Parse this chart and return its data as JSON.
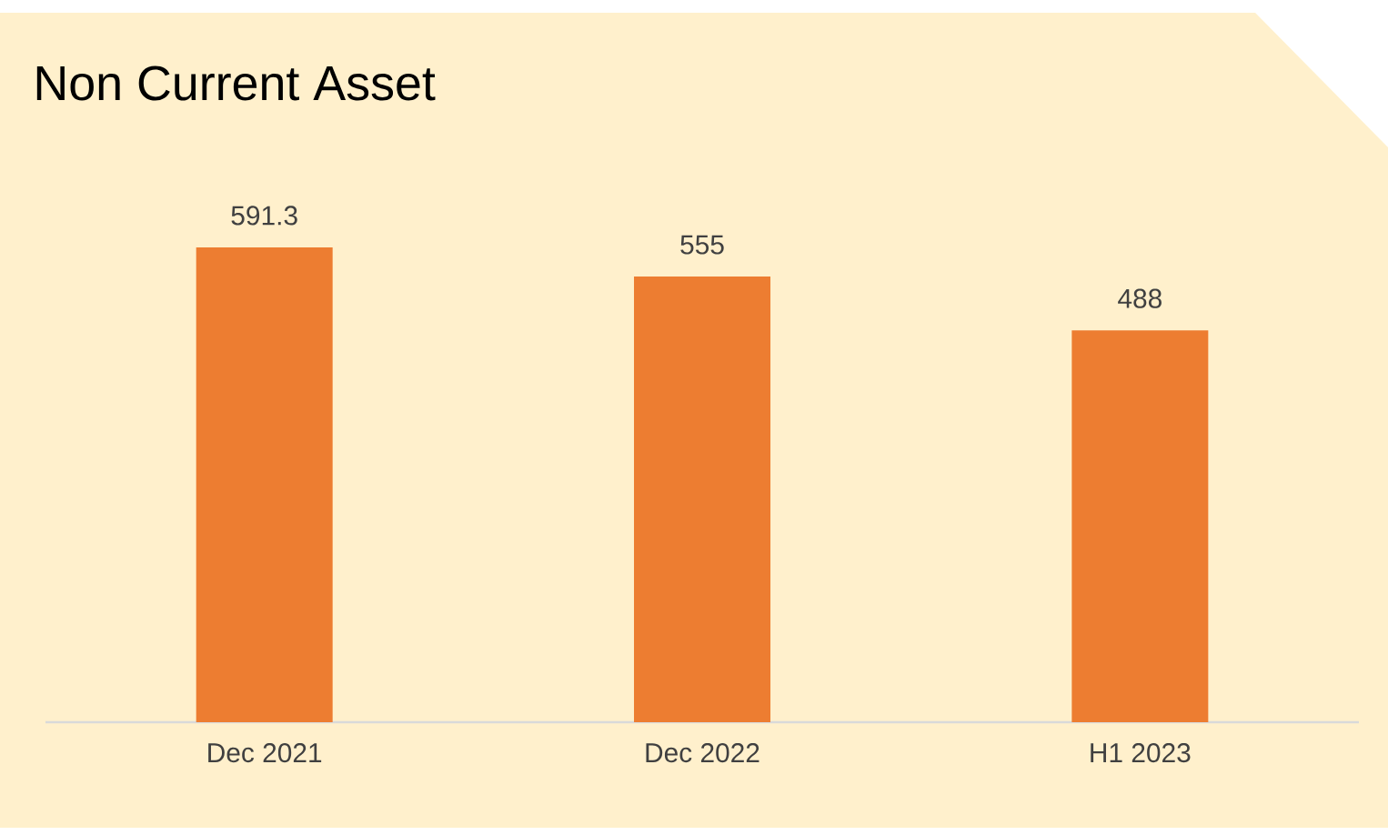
{
  "chart_data": {
    "type": "bar",
    "title": "Non Current Asset",
    "categories": [
      "Dec 2021",
      "Dec 2022",
      "H1 2023"
    ],
    "values": [
      591.3,
      555,
      488
    ],
    "color": "#ed7d31",
    "data_labels": true
  }
}
